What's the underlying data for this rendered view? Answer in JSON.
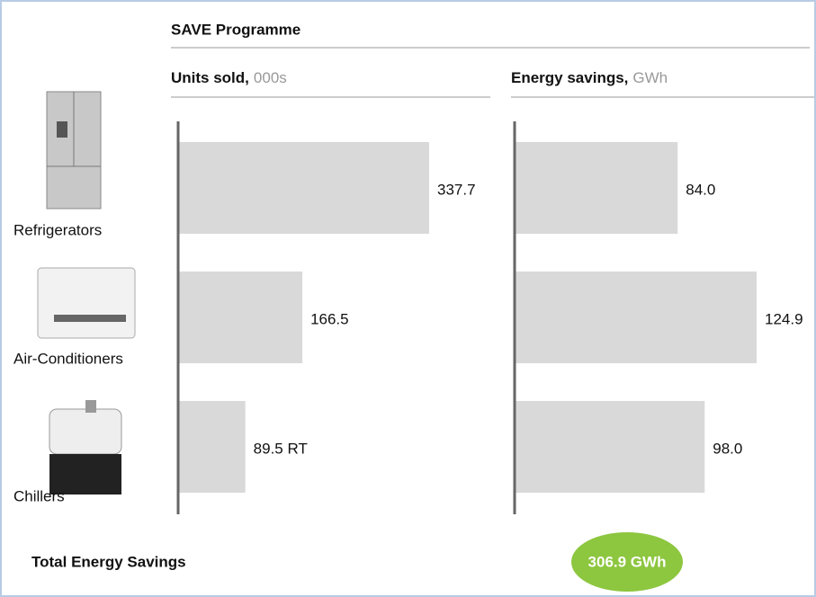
{
  "title": "SAVE Programme",
  "categories": [
    "Refrigerators",
    "Air-Conditioners",
    "Chillers"
  ],
  "chart_data": [
    {
      "type": "bar",
      "orientation": "horizontal",
      "title": "Units sold,",
      "units": "000s",
      "color": "#d9d9d9",
      "values": [
        337.7,
        166.5,
        89.5
      ],
      "value_labels": [
        "337.7",
        "166.5",
        "89.5 RT"
      ]
    },
    {
      "type": "bar",
      "orientation": "horizontal",
      "title": "Energy savings,",
      "units": "GWh",
      "color": "#d9d9d9",
      "values": [
        84.0,
        124.9,
        98.0
      ],
      "value_labels": [
        "84.0",
        "124.9",
        "98.0"
      ]
    }
  ],
  "total": {
    "label": "Total Energy Savings",
    "value_label": "306.9 GWh",
    "color": "#8dc63f"
  }
}
